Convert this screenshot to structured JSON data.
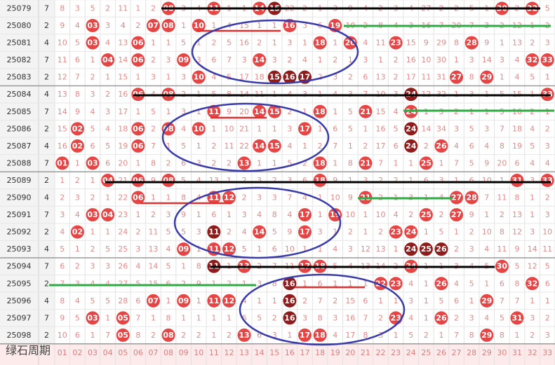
{
  "rows": [
    {
      "issue": "25079",
      "blue": "7",
      "cells": [
        8,
        3,
        5,
        2,
        11,
        1,
        2,
        "08",
        3,
        4,
        "11",
        1,
        1,
        "14",
        "15",
        22,
        2,
        1,
        3,
        9,
        4,
        2,
        3,
        4,
        27,
        2,
        2,
        5,
        1,
        "30",
        2,
        "32",
        5
      ],
      "dark": [
        "15"
      ]
    },
    {
      "issue": "25080",
      "blue": "2",
      "cells": [
        9,
        4,
        "03",
        3,
        4,
        2,
        "07",
        "08",
        1,
        "10",
        1,
        4,
        15,
        1,
        1,
        "16",
        3,
        6,
        "19",
        10,
        2,
        8,
        4,
        3,
        16,
        7,
        20,
        7,
        3,
        2,
        12,
        1,
        2
      ],
      "dark": []
    },
    {
      "issue": "25081",
      "blue": "4",
      "cells": [
        10,
        5,
        "03",
        4,
        13,
        "06",
        1,
        1,
        5,
        1,
        2,
        5,
        16,
        2,
        1,
        3,
        1,
        "18",
        1,
        "20",
        4,
        11,
        "23",
        15,
        9,
        29,
        8,
        "28",
        9,
        1,
        13,
        2,
        3
      ],
      "dark": []
    },
    {
      "issue": "25082",
      "blue": "7",
      "cells": [
        11,
        6,
        1,
        "04",
        14,
        "06",
        2,
        3,
        "09",
        3,
        6,
        7,
        3,
        "14",
        3,
        2,
        4,
        1,
        2,
        1,
        3,
        1,
        2,
        16,
        10,
        30,
        1,
        3,
        14,
        3,
        4,
        "32",
        "33"
      ],
      "dark": []
    },
    {
      "issue": "25083",
      "blue": "2",
      "cells": [
        12,
        7,
        2,
        1,
        15,
        1,
        3,
        1,
        3,
        "10",
        4,
        5,
        17,
        18,
        "15",
        "16",
        "17",
        2,
        3,
        2,
        6,
        13,
        2,
        17,
        11,
        31,
        "27",
        8,
        "29",
        1,
        4,
        5,
        1
      ],
      "dark": [
        "15",
        "16",
        "17"
      ]
    },
    {
      "issue": "25084",
      "blue": "4",
      "cells": [
        13,
        8,
        3,
        2,
        16,
        "06",
        4,
        "08",
        2,
        1,
        5,
        8,
        14,
        11,
        1,
        4,
        3,
        1,
        4,
        3,
        7,
        10,
        3,
        "24",
        12,
        32,
        1,
        3,
        1,
        5,
        15,
        1,
        "33"
      ],
      "dark": [
        "24"
      ]
    },
    {
      "issue": "25085",
      "blue": "7",
      "cells": [
        14,
        9,
        4,
        3,
        17,
        1,
        5,
        1,
        3,
        1,
        "11",
        9,
        20,
        "14",
        "15",
        2,
        1,
        "18",
        1,
        5,
        "21",
        15,
        4,
        "24",
        1,
        3,
        2,
        1,
        1,
        5,
        16,
        2,
        1
      ],
      "dark": []
    },
    {
      "issue": "25086",
      "blue": "2",
      "cells": [
        15,
        "02",
        5,
        4,
        18,
        "06",
        2,
        "08",
        4,
        "10",
        1,
        10,
        21,
        1,
        1,
        3,
        "17",
        1,
        6,
        5,
        1,
        16,
        5,
        "24",
        14,
        34,
        3,
        5,
        3,
        7,
        18,
        4,
        2
      ],
      "dark": [
        "24"
      ]
    },
    {
      "issue": "25087",
      "blue": "4",
      "cells": [
        16,
        "02",
        6,
        5,
        19,
        "06",
        7,
        1,
        5,
        1,
        2,
        11,
        22,
        "14",
        "15",
        4,
        1,
        2,
        7,
        1,
        2,
        17,
        6,
        "24",
        2,
        "26",
        4,
        6,
        4,
        8,
        19,
        5,
        3
      ],
      "dark": [
        "24"
      ]
    },
    {
      "issue": "25088",
      "blue": "7",
      "cells": [
        "01",
        1,
        "03",
        6,
        20,
        1,
        8,
        2,
        6,
        3,
        2,
        2,
        "13",
        1,
        1,
        5,
        2,
        "18",
        1,
        8,
        "21",
        7,
        1,
        1,
        "25",
        1,
        7,
        5,
        9,
        20,
        6,
        4,
        4
      ],
      "dark": []
    },
    {
      "issue": "25089",
      "blue": "2",
      "cells": [
        1,
        2,
        1,
        "04",
        21,
        "06",
        9,
        "08",
        5,
        4,
        13,
        1,
        2,
        3,
        2,
        3,
        6,
        "18",
        9,
        1,
        3,
        2,
        2,
        1,
        6,
        3,
        1,
        6,
        10,
        1,
        "31",
        3,
        "33"
      ],
      "dark": []
    },
    {
      "issue": "25090",
      "blue": "4",
      "cells": [
        2,
        3,
        2,
        1,
        22,
        "06",
        1,
        1,
        8,
        4,
        "11",
        "12",
        2,
        3,
        3,
        7,
        4,
        1,
        10,
        9,
        "21",
        2,
        1,
        3,
        1,
        4,
        "27",
        "28",
        7,
        11,
        8,
        1,
        2
      ],
      "dark": []
    },
    {
      "issue": "25091",
      "blue": "7",
      "cells": [
        3,
        4,
        "03",
        "04",
        23,
        1,
        2,
        3,
        9,
        1,
        6,
        1,
        3,
        4,
        8,
        4,
        "17",
        1,
        "19",
        10,
        1,
        10,
        4,
        2,
        "25",
        2,
        "27",
        9,
        1,
        2,
        13,
        1,
        3
      ],
      "dark": []
    },
    {
      "issue": "25092",
      "blue": "2",
      "cells": [
        4,
        "02",
        1,
        1,
        24,
        2,
        11,
        5,
        5,
        3,
        "11",
        2,
        4,
        "14",
        5,
        9,
        "17",
        3,
        1,
        2,
        1,
        2,
        "23",
        "24",
        1,
        5,
        1,
        2,
        10,
        8,
        12,
        3,
        10
      ],
      "dark": [
        "11"
      ]
    },
    {
      "issue": "25093",
      "blue": "4",
      "cells": [
        5,
        1,
        2,
        5,
        25,
        3,
        13,
        4,
        "09",
        1,
        "11",
        "12",
        5,
        1,
        6,
        10,
        1,
        1,
        4,
        3,
        12,
        13,
        1,
        "24",
        "25",
        "26",
        2,
        3,
        4,
        11,
        9,
        14,
        11
      ],
      "dark": [
        "24",
        "25",
        "26"
      ]
    },
    {
      "issue": "25094",
      "blue": "7",
      "cells": [
        6,
        2,
        3,
        3,
        26,
        4,
        14,
        5,
        1,
        8,
        "11",
        1,
        "13",
        2,
        7,
        11,
        "17",
        "18",
        5,
        4,
        13,
        14,
        2,
        "24",
        1,
        1,
        3,
        4,
        5,
        "30",
        5,
        12,
        5
      ],
      "dark": [
        "11"
      ]
    },
    {
      "issue": "25095",
      "blue": "2",
      "cells": [
        7,
        3,
        4,
        4,
        27,
        5,
        15,
        6,
        2,
        9,
        1,
        2,
        1,
        3,
        8,
        "16",
        1,
        6,
        1,
        1,
        1,
        "22",
        "23",
        4,
        1,
        "26",
        4,
        5,
        1,
        6,
        8,
        "32",
        6
      ],
      "dark": [
        "16"
      ]
    },
    {
      "issue": "25096",
      "blue": "4",
      "cells": [
        8,
        4,
        5,
        5,
        28,
        6,
        "07",
        1,
        "09",
        1,
        "11",
        "12",
        4,
        1,
        1,
        "16",
        2,
        7,
        2,
        15,
        6,
        1,
        1,
        3,
        1,
        5,
        6,
        1,
        "29",
        7,
        7,
        1,
        1
      ],
      "dark": [
        "16"
      ]
    },
    {
      "issue": "25097",
      "blue": "7",
      "cells": [
        9,
        5,
        "03",
        1,
        "05",
        7,
        1,
        8,
        1,
        1,
        1,
        1,
        6,
        5,
        2,
        "16",
        3,
        8,
        3,
        16,
        7,
        2,
        "23",
        4,
        1,
        "26",
        2,
        3,
        4,
        5,
        "31",
        3,
        2
      ],
      "dark": [
        "16"
      ]
    },
    {
      "issue": "25098",
      "blue": "2",
      "cells": [
        10,
        6,
        1,
        7,
        "05",
        8,
        2,
        "08",
        2,
        2,
        1,
        2,
        "13",
        6,
        3,
        1,
        "17",
        "18",
        4,
        17,
        8,
        3,
        1,
        5,
        2,
        1,
        7,
        8,
        "29",
        8,
        1,
        2,
        3
      ],
      "dark": []
    }
  ],
  "footer": {
    "labels": [
      "01",
      "02",
      "03",
      "04",
      "05",
      "06",
      "07",
      "08",
      "09",
      "10",
      "11",
      "12",
      "13",
      "14",
      "15",
      "16",
      "17",
      "18",
      "19",
      "20",
      "21",
      "22",
      "23",
      "24",
      "25",
      "26",
      "27",
      "28",
      "29",
      "30",
      "31",
      "32",
      "33"
    ]
  },
  "watermark": "绿石周期"
}
